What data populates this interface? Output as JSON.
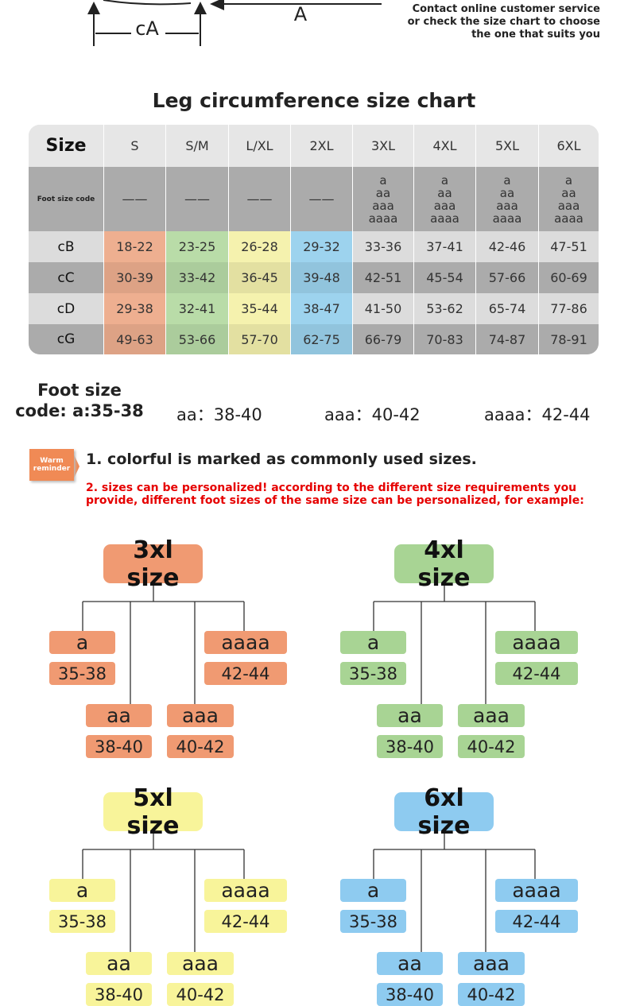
{
  "diagram": {
    "label_small": "cA",
    "label_large": "A",
    "contact": [
      "Contact online customer service",
      "or check the size chart to choose",
      "the one that suits you"
    ]
  },
  "title": "Leg circumference size chart",
  "table": {
    "header": {
      "label": "Size",
      "sizes": [
        "S",
        "S/M",
        "L/XL",
        "2XL",
        "3XL",
        "4XL",
        "5XL",
        "6XL"
      ]
    },
    "foot_row": {
      "label": "Foot size code",
      "cells": [
        "——",
        "——",
        "——",
        "——",
        [
          "a",
          "aa",
          "aaa",
          "aaaa"
        ],
        [
          "a",
          "aa",
          "aaa",
          "aaaa"
        ],
        [
          "a",
          "aa",
          "aaa",
          "aaaa"
        ],
        [
          "a",
          "aa",
          "aaa",
          "aaaa"
        ]
      ]
    },
    "rows": [
      {
        "label": "cB",
        "cells": [
          "18-22",
          "23-25",
          "26-28",
          "29-32",
          "33-36",
          "37-41",
          "42-46",
          "47-51"
        ]
      },
      {
        "label": "cC",
        "cells": [
          "30-39",
          "33-42",
          "36-45",
          "39-48",
          "42-51",
          "45-54",
          "57-66",
          "60-69"
        ]
      },
      {
        "label": "cD",
        "cells": [
          "29-38",
          "32-41",
          "35-44",
          "38-47",
          "41-50",
          "53-62",
          "65-74",
          "77-86"
        ]
      },
      {
        "label": "cG",
        "cells": [
          "49-63",
          "53-66",
          "57-70",
          "62-75",
          "66-79",
          "70-83",
          "74-87",
          "78-91"
        ]
      }
    ],
    "highlight_colors": [
      "#eeaf90",
      "#b9dca8",
      "#f5f2ae",
      "#9dd3ee"
    ]
  },
  "legend": {
    "first": [
      "Foot size",
      "code: a:35-38"
    ],
    "others": [
      "aa：38-40",
      "aaa：40-42",
      "aaaa：42-44"
    ]
  },
  "reminder": {
    "badge": [
      "Warm",
      "reminder"
    ],
    "note1": "1. colorful is marked as commonly used sizes.",
    "note2": [
      "2. sizes can be personalized! according to the different size requirements you",
      "provide, different foot sizes of the same size can be personalized, for example:"
    ]
  },
  "trees": [
    {
      "title": "3xl size",
      "color": "#f09a72",
      "leaves": [
        {
          "code": "a",
          "range": "35-38"
        },
        {
          "code": "aa",
          "range": "38-40"
        },
        {
          "code": "aaa",
          "range": "40-42"
        },
        {
          "code": "aaaa",
          "range": "42-44"
        }
      ]
    },
    {
      "title": "4xl size",
      "color": "#a8d494",
      "leaves": [
        {
          "code": "a",
          "range": "35-38"
        },
        {
          "code": "aa",
          "range": "38-40"
        },
        {
          "code": "aaa",
          "range": "40-42"
        },
        {
          "code": "aaaa",
          "range": "42-44"
        }
      ]
    },
    {
      "title": "5xl size",
      "color": "#f8f49a",
      "leaves": [
        {
          "code": "a",
          "range": "35-38"
        },
        {
          "code": "aa",
          "range": "38-40"
        },
        {
          "code": "aaa",
          "range": "40-42"
        },
        {
          "code": "aaaa",
          "range": "42-44"
        }
      ]
    },
    {
      "title": "6xl size",
      "color": "#8ecbf0",
      "leaves": [
        {
          "code": "a",
          "range": "35-38"
        },
        {
          "code": "aa",
          "range": "38-40"
        },
        {
          "code": "aaa",
          "range": "40-42"
        },
        {
          "code": "aaaa",
          "range": "42-44"
        }
      ]
    }
  ]
}
